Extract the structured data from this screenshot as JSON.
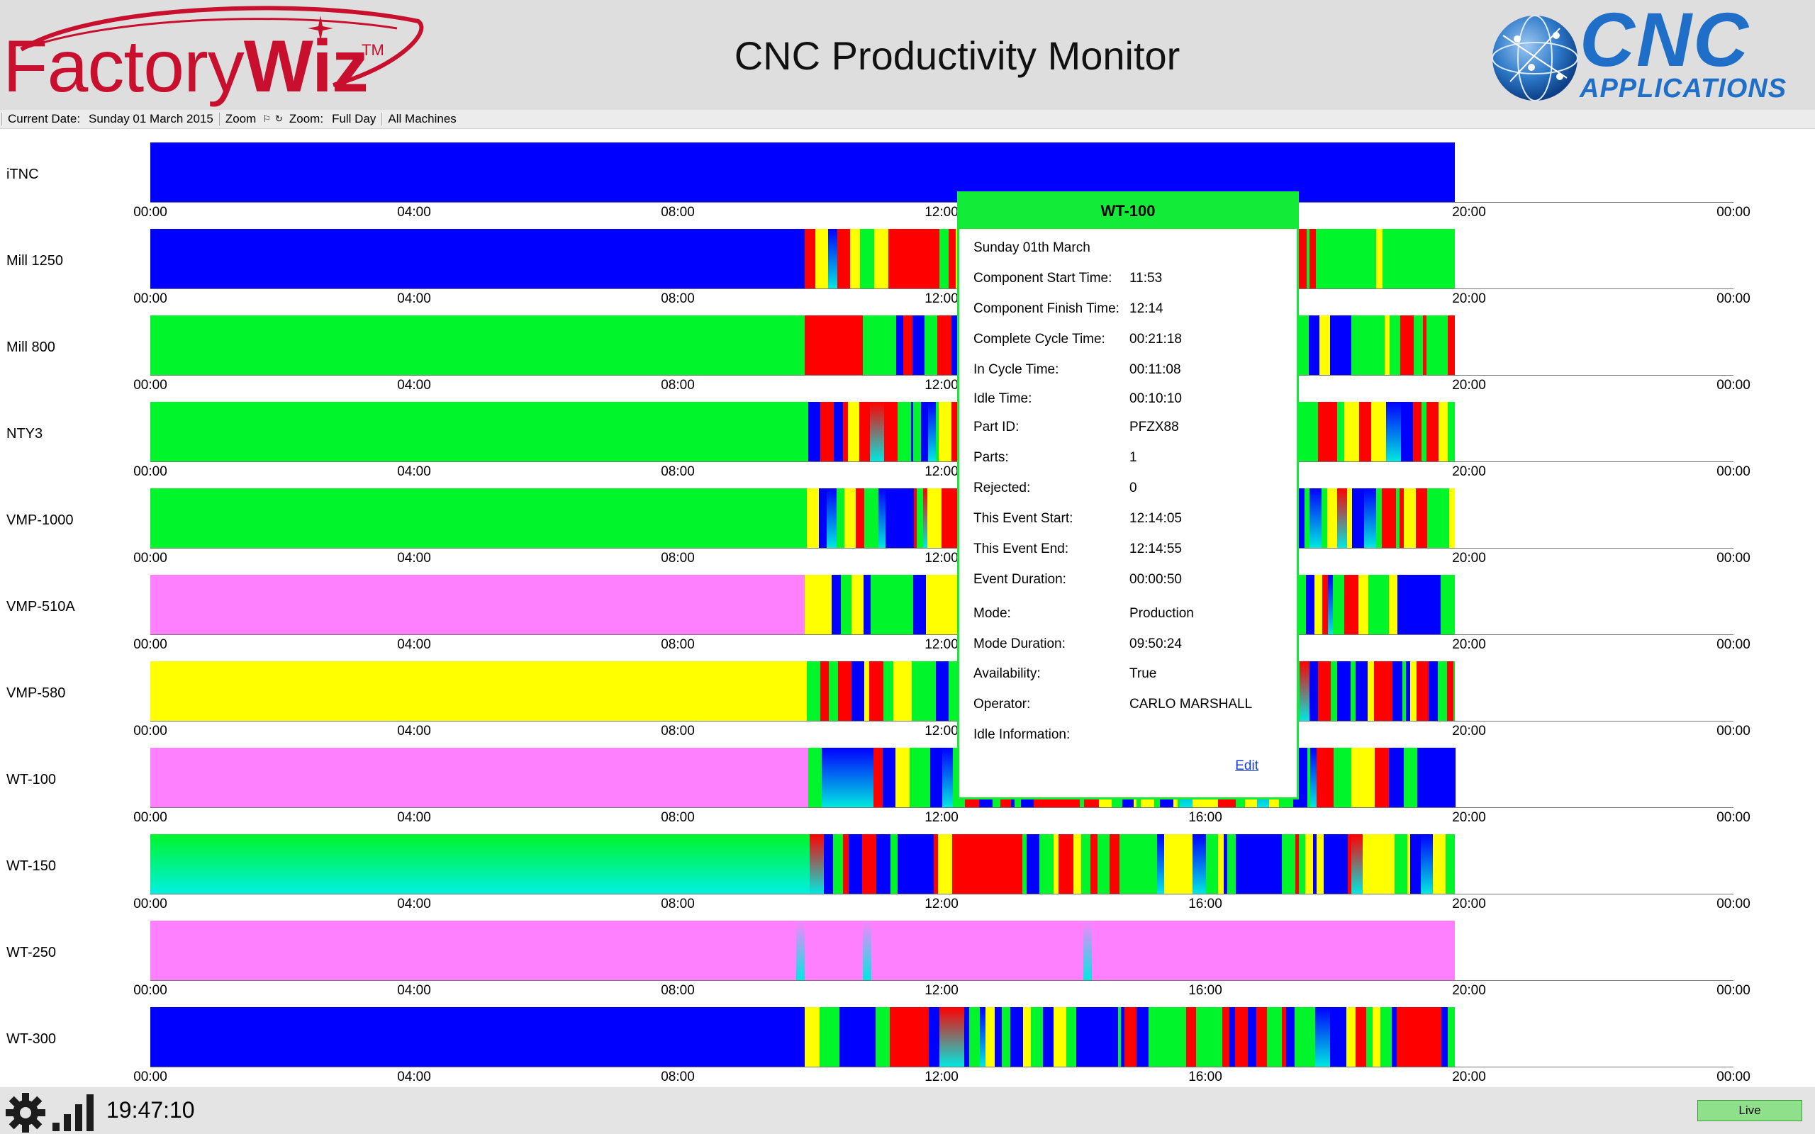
{
  "header": {
    "logo_left": {
      "part1": "Factory",
      "part2": "Wiz",
      "tm": "TM"
    },
    "title": "CNC Productivity Monitor",
    "logo_right": {
      "line1": "CNC",
      "line2": "APPLICATIONS"
    }
  },
  "toolbar": {
    "current_date_label": "Current Date:",
    "current_date": "Sunday 01 March 2015",
    "zoom_label": "Zoom",
    "zoom2_label": "Zoom:",
    "zoom_value": "Full Day",
    "machine_filter": "All Machines"
  },
  "colors": {
    "blue": "#0000ff",
    "green": "#00f52a",
    "magenta": "#ff80ff",
    "yellow": "#ffff00",
    "red": "#ff0000",
    "cyan": "#00e8e0",
    "accent_green": "#12ec38"
  },
  "axis_ticks": [
    "00:00",
    "04:00",
    "08:00",
    "12:00",
    "16:00",
    "20:00",
    "00:00"
  ],
  "day_fraction_shown": 0.8229,
  "machines": [
    {
      "name": "iTNC",
      "base": "blue",
      "active_from": 1.0
    },
    {
      "name": "Mill 1250",
      "base": "blue",
      "active_from": 0.5015
    },
    {
      "name": "Mill 800",
      "base": "green",
      "active_from": 0.5015
    },
    {
      "name": "NTY3",
      "base": "green",
      "active_from": 0.5045
    },
    {
      "name": "VMP-1000",
      "base": "green",
      "active_from": 0.5035
    },
    {
      "name": "VMP-510A",
      "base": "magenta",
      "active_from": 0.5015
    },
    {
      "name": "VMP-580",
      "base": "yellow",
      "active_from": 0.5035
    },
    {
      "name": "WT-100",
      "base": "magenta",
      "active_from": 0.5045
    },
    {
      "name": "WT-150",
      "base": "green-cyan",
      "active_from": 0.5055
    },
    {
      "name": "WT-250",
      "base": "magenta",
      "active_from": 1.0,
      "spikes": [
        0.4986,
        0.5494,
        0.7184
      ]
    },
    {
      "name": "WT-300",
      "base": "blue",
      "active_from": 0.5015
    }
  ],
  "popup": {
    "title": "WT-100",
    "date": "Sunday 01th March",
    "fields": [
      {
        "label": "Component Start Time:",
        "value": "11:53"
      },
      {
        "label": "Component Finish Time:",
        "value": "12:14"
      },
      {
        "label": "Complete Cycle Time:",
        "value": "00:21:18"
      },
      {
        "label": "In Cycle Time:",
        "value": "00:11:08"
      },
      {
        "label": "Idle Time:",
        "value": "00:10:10"
      },
      {
        "label": "Part ID:",
        "value": "PFZX88"
      },
      {
        "label": "Parts:",
        "value": "1"
      },
      {
        "label": "Rejected:",
        "value": "0"
      },
      {
        "label": "This Event Start:",
        "value": "12:14:05"
      },
      {
        "label": "This Event End:",
        "value": "12:14:55"
      },
      {
        "label": "Event Duration:",
        "value": "00:00:50"
      },
      {
        "label": "Mode:",
        "value": "Production"
      },
      {
        "label": "Mode Duration:",
        "value": "09:50:24"
      },
      {
        "label": "Availability:",
        "value": "True"
      },
      {
        "label": "Operator:",
        "value": "CARLO MARSHALL"
      },
      {
        "label": "Idle Information:",
        "value": ""
      }
    ],
    "edit_label": "Edit"
  },
  "statusbar": {
    "clock": "19:47:10",
    "live_label": "Live",
    "icons": [
      "gear-icon",
      "signal-bars-icon"
    ]
  }
}
